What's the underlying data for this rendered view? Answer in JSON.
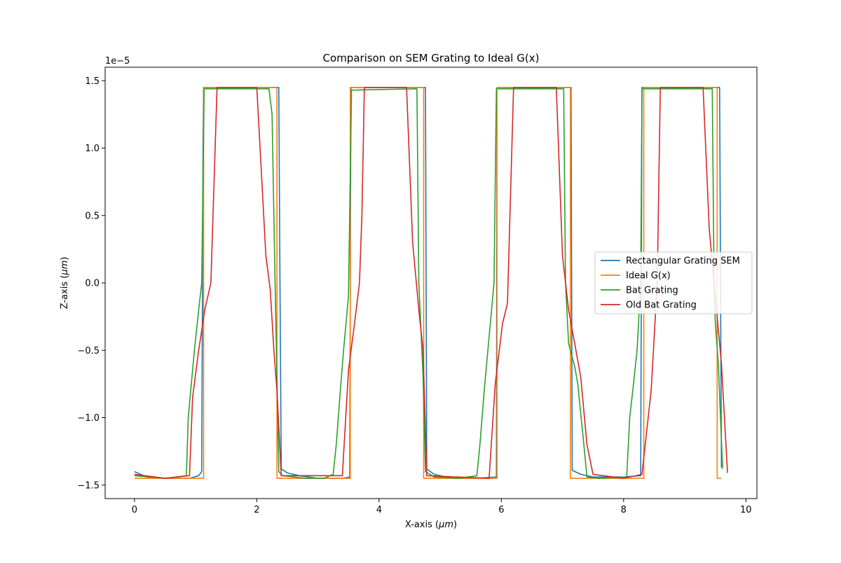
{
  "chart_data": {
    "type": "line",
    "title": "Comparison on SEM Grating to Ideal G(x)",
    "xlabel_main": "X-axis (",
    "xlabel_unit": "μm",
    "xlabel_end": ")",
    "ylabel_main": "Z-axis (",
    "ylabel_unit": "μm",
    "ylabel_end": ")",
    "y_offset_text": "1e−5",
    "xlim": [
      -0.48,
      10.18
    ],
    "ylim": [
      -1.6,
      1.6
    ],
    "y_scale_exponent": -5,
    "x_ticks": [
      0,
      2,
      4,
      6,
      8,
      10
    ],
    "x_tick_labels": [
      "0",
      "2",
      "4",
      "6",
      "8",
      "10"
    ],
    "y_ticks": [
      -1.5,
      -1.0,
      -0.5,
      0.0,
      0.5,
      1.0,
      1.5
    ],
    "y_tick_labels": [
      "−1.5",
      "−1.0",
      "−0.5",
      "0.0",
      "0.5",
      "1.0",
      "1.5"
    ],
    "legend_position": "center-right",
    "series": [
      {
        "name": "Rectangular Grating SEM",
        "color": "#1f77b4",
        "points": [
          [
            0,
            -1.4
          ],
          [
            0.1,
            -1.42
          ],
          [
            0.2,
            -1.44
          ],
          [
            0.5,
            -1.45
          ],
          [
            0.9,
            -1.45
          ],
          [
            1.05,
            -1.43
          ],
          [
            1.1,
            -1.4
          ],
          [
            1.12,
            0.9
          ],
          [
            1.13,
            1.45
          ],
          [
            2.36,
            1.45
          ],
          [
            2.38,
            0.0
          ],
          [
            2.4,
            -1.38
          ],
          [
            2.5,
            -1.41
          ],
          [
            2.7,
            -1.43
          ],
          [
            3.0,
            -1.45
          ],
          [
            3.4,
            -1.45
          ],
          [
            3.52,
            -1.44
          ],
          [
            3.54,
            1.45
          ],
          [
            4.76,
            1.45
          ],
          [
            4.78,
            -1.38
          ],
          [
            4.9,
            -1.42
          ],
          [
            5.2,
            -1.45
          ],
          [
            5.6,
            -1.45
          ],
          [
            5.92,
            -1.44
          ],
          [
            5.93,
            1.45
          ],
          [
            7.14,
            1.45
          ],
          [
            7.16,
            -1.39
          ],
          [
            7.3,
            -1.42
          ],
          [
            7.5,
            -1.44
          ],
          [
            8.0,
            -1.44
          ],
          [
            8.28,
            -1.43
          ],
          [
            8.3,
            1.45
          ],
          [
            9.57,
            1.45
          ],
          [
            9.6,
            -1.37
          ]
        ]
      },
      {
        "name": "Ideal G(x)",
        "color": "#ff7f0e",
        "points": [
          [
            0,
            -1.45
          ],
          [
            1.13,
            -1.45
          ],
          [
            1.13,
            1.45
          ],
          [
            2.33,
            1.45
          ],
          [
            2.33,
            -1.45
          ],
          [
            3.53,
            -1.45
          ],
          [
            3.53,
            1.45
          ],
          [
            4.73,
            1.45
          ],
          [
            4.73,
            -1.45
          ],
          [
            5.93,
            -1.45
          ],
          [
            5.93,
            1.45
          ],
          [
            7.13,
            1.45
          ],
          [
            7.13,
            -1.45
          ],
          [
            8.33,
            -1.45
          ],
          [
            8.33,
            1.45
          ],
          [
            9.53,
            1.45
          ],
          [
            9.53,
            -1.45
          ],
          [
            9.6,
            -1.45
          ]
        ]
      },
      {
        "name": "Bat Grating",
        "color": "#2ca02c",
        "points": [
          [
            0,
            -1.43
          ],
          [
            0.5,
            -1.45
          ],
          [
            0.85,
            -1.43
          ],
          [
            0.88,
            -1.0
          ],
          [
            0.92,
            -0.8
          ],
          [
            0.98,
            -0.5
          ],
          [
            1.05,
            -0.2
          ],
          [
            1.1,
            0.0
          ],
          [
            1.14,
            1.44
          ],
          [
            2.2,
            1.44
          ],
          [
            2.25,
            1.25
          ],
          [
            2.3,
            0.0
          ],
          [
            2.33,
            -0.7
          ],
          [
            2.36,
            -1.4
          ],
          [
            2.42,
            -1.43
          ],
          [
            2.8,
            -1.45
          ],
          [
            3.1,
            -1.45
          ],
          [
            3.25,
            -1.42
          ],
          [
            3.3,
            -1.2
          ],
          [
            3.35,
            -0.9
          ],
          [
            3.42,
            -0.5
          ],
          [
            3.5,
            -0.1
          ],
          [
            3.55,
            1.43
          ],
          [
            4.62,
            1.44
          ],
          [
            4.65,
            0.0
          ],
          [
            4.72,
            -0.7
          ],
          [
            4.76,
            -1.4
          ],
          [
            4.9,
            -1.44
          ],
          [
            5.3,
            -1.45
          ],
          [
            5.6,
            -1.43
          ],
          [
            5.65,
            -1.2
          ],
          [
            5.72,
            -0.8
          ],
          [
            5.8,
            -0.4
          ],
          [
            5.88,
            0.0
          ],
          [
            5.92,
            1.44
          ],
          [
            7.02,
            1.44
          ],
          [
            7.05,
            0.0
          ],
          [
            7.1,
            -0.45
          ],
          [
            7.2,
            -0.62
          ],
          [
            7.25,
            -0.75
          ],
          [
            7.35,
            -1.2
          ],
          [
            7.4,
            -1.44
          ],
          [
            7.6,
            -1.45
          ],
          [
            8.05,
            -1.44
          ],
          [
            8.1,
            -1.0
          ],
          [
            8.15,
            -0.8
          ],
          [
            8.22,
            -0.5
          ],
          [
            8.28,
            0.0
          ],
          [
            8.3,
            1.44
          ],
          [
            9.45,
            1.44
          ],
          [
            9.48,
            0.0
          ],
          [
            9.5,
            -0.3
          ],
          [
            9.55,
            -0.6
          ],
          [
            9.58,
            -0.95
          ],
          [
            9.62,
            -1.38
          ]
        ]
      },
      {
        "name": "Old Bat Grating",
        "color": "#d62728",
        "points": [
          [
            0,
            -1.42
          ],
          [
            0.5,
            -1.45
          ],
          [
            0.9,
            -1.43
          ],
          [
            0.95,
            -0.85
          ],
          [
            1.05,
            -0.5
          ],
          [
            1.15,
            -0.2
          ],
          [
            1.25,
            0.0
          ],
          [
            1.35,
            1.45
          ],
          [
            2.0,
            1.45
          ],
          [
            2.15,
            0.2
          ],
          [
            2.22,
            -0.05
          ],
          [
            2.28,
            -0.5
          ],
          [
            2.33,
            -0.8
          ],
          [
            2.4,
            -1.43
          ],
          [
            3.4,
            -1.43
          ],
          [
            3.5,
            -0.65
          ],
          [
            3.6,
            -0.3
          ],
          [
            3.68,
            0.0
          ],
          [
            3.72,
            0.5
          ],
          [
            3.76,
            1.45
          ],
          [
            4.45,
            1.45
          ],
          [
            4.55,
            0.3
          ],
          [
            4.65,
            -0.2
          ],
          [
            4.72,
            -0.5
          ],
          [
            4.78,
            -1.43
          ],
          [
            5.8,
            -1.45
          ],
          [
            5.9,
            -0.75
          ],
          [
            6.02,
            -0.3
          ],
          [
            6.1,
            -0.15
          ],
          [
            6.2,
            1.45
          ],
          [
            6.9,
            1.45
          ],
          [
            7.0,
            0.2
          ],
          [
            7.1,
            -0.2
          ],
          [
            7.18,
            -0.4
          ],
          [
            7.3,
            -0.7
          ],
          [
            7.4,
            -1.2
          ],
          [
            7.5,
            -1.42
          ],
          [
            8.0,
            -1.45
          ],
          [
            8.3,
            -1.42
          ],
          [
            8.45,
            -0.8
          ],
          [
            8.55,
            0.0
          ],
          [
            8.6,
            1.45
          ],
          [
            9.3,
            1.45
          ],
          [
            9.4,
            0.4
          ],
          [
            9.5,
            -0.1
          ],
          [
            9.6,
            -0.6
          ],
          [
            9.7,
            -1.41
          ]
        ]
      }
    ]
  }
}
